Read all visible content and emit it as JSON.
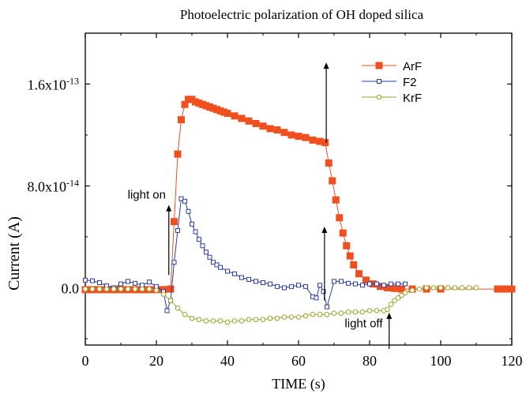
{
  "chart_data": {
    "type": "line",
    "title": "Photoelectric polarization of OH doped silica",
    "xlabel": "TIME (s)",
    "ylabel": "Current (A)",
    "xlim": [
      0,
      120
    ],
    "ylim": [
      -4.5e-14,
      2e-13
    ],
    "x_ticks": [
      0,
      20,
      40,
      60,
      80,
      100,
      120
    ],
    "x_tick_labels": [
      "0",
      "20",
      "40",
      "60",
      "80",
      "100",
      "120"
    ],
    "y_ticks": [
      0,
      8e-14,
      1.6e-13
    ],
    "y_tick_labels": [
      {
        "mantissa": "0.0",
        "exponent": ""
      },
      {
        "mantissa": "8.0x10",
        "exponent": "-14"
      },
      {
        "mantissa": "1.6x10",
        "exponent": "-13"
      }
    ],
    "grid": false,
    "legend_position": "top-right",
    "series": [
      {
        "name": "ArF",
        "color": "#f05020",
        "marker": "filled-square",
        "x": [
          0,
          2,
          4,
          6,
          8,
          10,
          12,
          14,
          16,
          18,
          20,
          22,
          24,
          25,
          26,
          27,
          28,
          29,
          30,
          31,
          32,
          33,
          34,
          35,
          36,
          37,
          38,
          39,
          40,
          42,
          44,
          46,
          48,
          50,
          52,
          54,
          56,
          58,
          60,
          62,
          64,
          66,
          67.5,
          68.5,
          69.5,
          70.5,
          71.5,
          72.5,
          73.5,
          74.5,
          75.5,
          77,
          79,
          81,
          83,
          85,
          87,
          89,
          92,
          96,
          100,
          116,
          118,
          120
        ],
        "y": [
          -1.5e-15,
          -1.5e-15,
          -1.5e-15,
          -1.5e-15,
          -1.5e-15,
          -1.5e-15,
          -1.5e-15,
          -1.5e-15,
          -1.5e-15,
          -1.5e-15,
          -1.5e-15,
          -1.5e-15,
          -1e-15,
          5.2e-14,
          1.05e-13,
          1.32e-13,
          1.44e-13,
          1.48e-13,
          1.48e-13,
          1.46e-13,
          1.45e-13,
          1.44e-13,
          1.43e-13,
          1.42e-13,
          1.41e-13,
          1.4e-13,
          1.39e-13,
          1.38e-13,
          1.37e-13,
          1.35e-13,
          1.33e-13,
          1.31e-13,
          1.29e-13,
          1.27e-13,
          1.25e-13,
          1.24e-13,
          1.22e-13,
          1.2e-13,
          1.19e-13,
          1.18e-13,
          1.16e-13,
          1.15e-13,
          1.14e-13,
          9.8e-14,
          8.4e-14,
          6.9e-14,
          5.5e-14,
          4.3e-14,
          3.3e-14,
          2.5e-14,
          1.8e-14,
          1.1e-14,
          6e-15,
          3e-15,
          1e-15,
          0.0,
          -5e-16,
          -1e-15,
          -1e-15,
          -1e-15,
          -1e-15,
          -1e-15,
          -1e-15,
          -1e-15
        ]
      },
      {
        "name": "F2",
        "color": "#2c3ca8",
        "marker": "open-square",
        "x": [
          0,
          2,
          4,
          6,
          8,
          10,
          12,
          14,
          16,
          18,
          20,
          22,
          23,
          24,
          25,
          26,
          27,
          28,
          29,
          30,
          31,
          32,
          33,
          34,
          35,
          36,
          37,
          38,
          40,
          42,
          44,
          46,
          48,
          50,
          52,
          54,
          56,
          58,
          60,
          62,
          64,
          65,
          66,
          67,
          68,
          70,
          72,
          74,
          76,
          78,
          80,
          82,
          84,
          86,
          88,
          90
        ],
        "y": [
          6e-15,
          5.5e-15,
          4e-15,
          1.5e-15,
          0.0,
          3e-15,
          5e-15,
          3.5e-15,
          2e-15,
          4.5e-15,
          1e-15,
          -3e-15,
          -1.8e-14,
          -1e-14,
          2e-14,
          4.5e-14,
          7e-14,
          6.8e-14,
          6e-14,
          5e-14,
          4.4e-14,
          3.8e-14,
          3.3e-14,
          2.8e-14,
          2.4e-14,
          2e-14,
          1.8e-14,
          1.6e-14,
          1.3e-14,
          1.1e-14,
          8e-15,
          6.5e-15,
          5e-15,
          4e-15,
          3e-15,
          1e-15,
          0.0,
          1e-15,
          2e-15,
          1e-15,
          -7e-15,
          -8e-15,
          2e-15,
          -3e-15,
          -1.5e-14,
          5e-15,
          5e-15,
          3.5e-15,
          3e-15,
          2e-15,
          3e-15,
          3e-15,
          2e-15,
          3e-15,
          3e-15,
          3e-15
        ]
      },
      {
        "name": "KrF",
        "color": "#9aa42a",
        "marker": "open-circle",
        "x": [
          0,
          2,
          4,
          6,
          8,
          10,
          12,
          14,
          16,
          18,
          20,
          22,
          24,
          26,
          28,
          30,
          32,
          34,
          36,
          38,
          40,
          42,
          44,
          46,
          48,
          50,
          52,
          54,
          56,
          58,
          60,
          62,
          64,
          66,
          68,
          70,
          72,
          74,
          76,
          78,
          80,
          82,
          84,
          85,
          86,
          87,
          88,
          89,
          90,
          92,
          94,
          96,
          98,
          100,
          102,
          104,
          106,
          108,
          110
        ],
        "y": [
          -1e-15,
          -1e-15,
          -1e-15,
          -1e-15,
          -1e-15,
          -1e-15,
          -1e-15,
          -1e-15,
          -1e-15,
          -1e-15,
          -2e-15,
          -5e-15,
          -1e-14,
          -1.6e-14,
          -2.1e-14,
          -2.4e-14,
          -2.5e-14,
          -2.6e-14,
          -2.6e-14,
          -2.6e-14,
          -2.7e-14,
          -2.6e-14,
          -2.6e-14,
          -2.5e-14,
          -2.5e-14,
          -2.5e-14,
          -2.4e-14,
          -2.4e-14,
          -2.3e-14,
          -2.3e-14,
          -2.3e-14,
          -2.2e-14,
          -2.1e-14,
          -2.1e-14,
          -2.1e-14,
          -2e-14,
          -2e-14,
          -1.9e-14,
          -1.9e-14,
          -1.9e-14,
          -1.8e-14,
          -1.8e-14,
          -1.8e-14,
          -1.7e-14,
          -1.3e-14,
          -1e-14,
          -8e-15,
          -6e-15,
          -4e-15,
          -2e-15,
          -1e-15,
          0.0,
          0.0,
          0.0,
          0.0,
          0.0,
          0.0,
          0.0,
          0.0
        ]
      }
    ],
    "annotations": [
      {
        "text": "light on",
        "x": 24,
        "y": 7e-14
      },
      {
        "text": "light off",
        "x": 85,
        "y": -3.1e-14
      }
    ],
    "arrows": [
      {
        "x": 23.5,
        "y_from": 1e-14,
        "y_to": 6.5e-14
      },
      {
        "x": 67.3,
        "y_from": -1e-14,
        "y_to": 4.8e-14
      },
      {
        "x": 67.8,
        "y_from": 1.14e-13,
        "y_to": 1.77e-13
      },
      {
        "x": 85.5,
        "y_from": -4.8e-14,
        "y_to": -1.95e-14
      }
    ]
  }
}
